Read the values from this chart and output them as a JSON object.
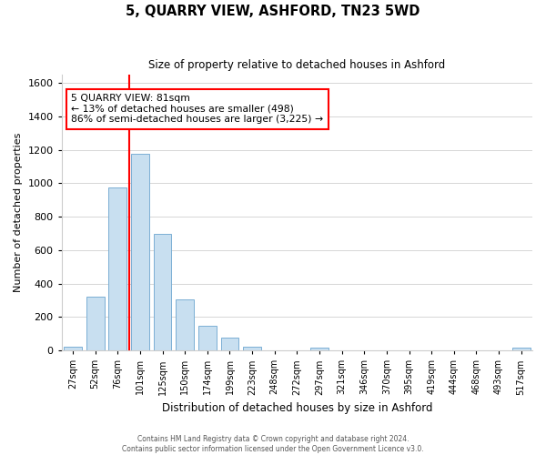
{
  "title": "5, QUARRY VIEW, ASHFORD, TN23 5WD",
  "subtitle": "Size of property relative to detached houses in Ashford",
  "xlabel": "Distribution of detached houses by size in Ashford",
  "ylabel": "Number of detached properties",
  "bar_labels": [
    "27sqm",
    "52sqm",
    "76sqm",
    "101sqm",
    "125sqm",
    "150sqm",
    "174sqm",
    "199sqm",
    "223sqm",
    "248sqm",
    "272sqm",
    "297sqm",
    "321sqm",
    "346sqm",
    "370sqm",
    "395sqm",
    "419sqm",
    "444sqm",
    "468sqm",
    "493sqm",
    "517sqm"
  ],
  "bar_values": [
    25,
    320,
    975,
    1175,
    700,
    305,
    150,
    75,
    25,
    0,
    0,
    15,
    0,
    0,
    0,
    0,
    0,
    0,
    0,
    0,
    15
  ],
  "bar_color": "#c8dff0",
  "bar_edge_color": "#7bafd4",
  "vline_color": "red",
  "annotation_title": "5 QUARRY VIEW: 81sqm",
  "annotation_line1": "← 13% of detached houses are smaller (498)",
  "annotation_line2": "86% of semi-detached houses are larger (3,225) →",
  "annotation_box_color": "white",
  "annotation_box_edge": "red",
  "ylim": [
    0,
    1650
  ],
  "yticks": [
    0,
    200,
    400,
    600,
    800,
    1000,
    1200,
    1400,
    1600
  ],
  "footer1": "Contains HM Land Registry data © Crown copyright and database right 2024.",
  "footer2": "Contains public sector information licensed under the Open Government Licence v3.0."
}
